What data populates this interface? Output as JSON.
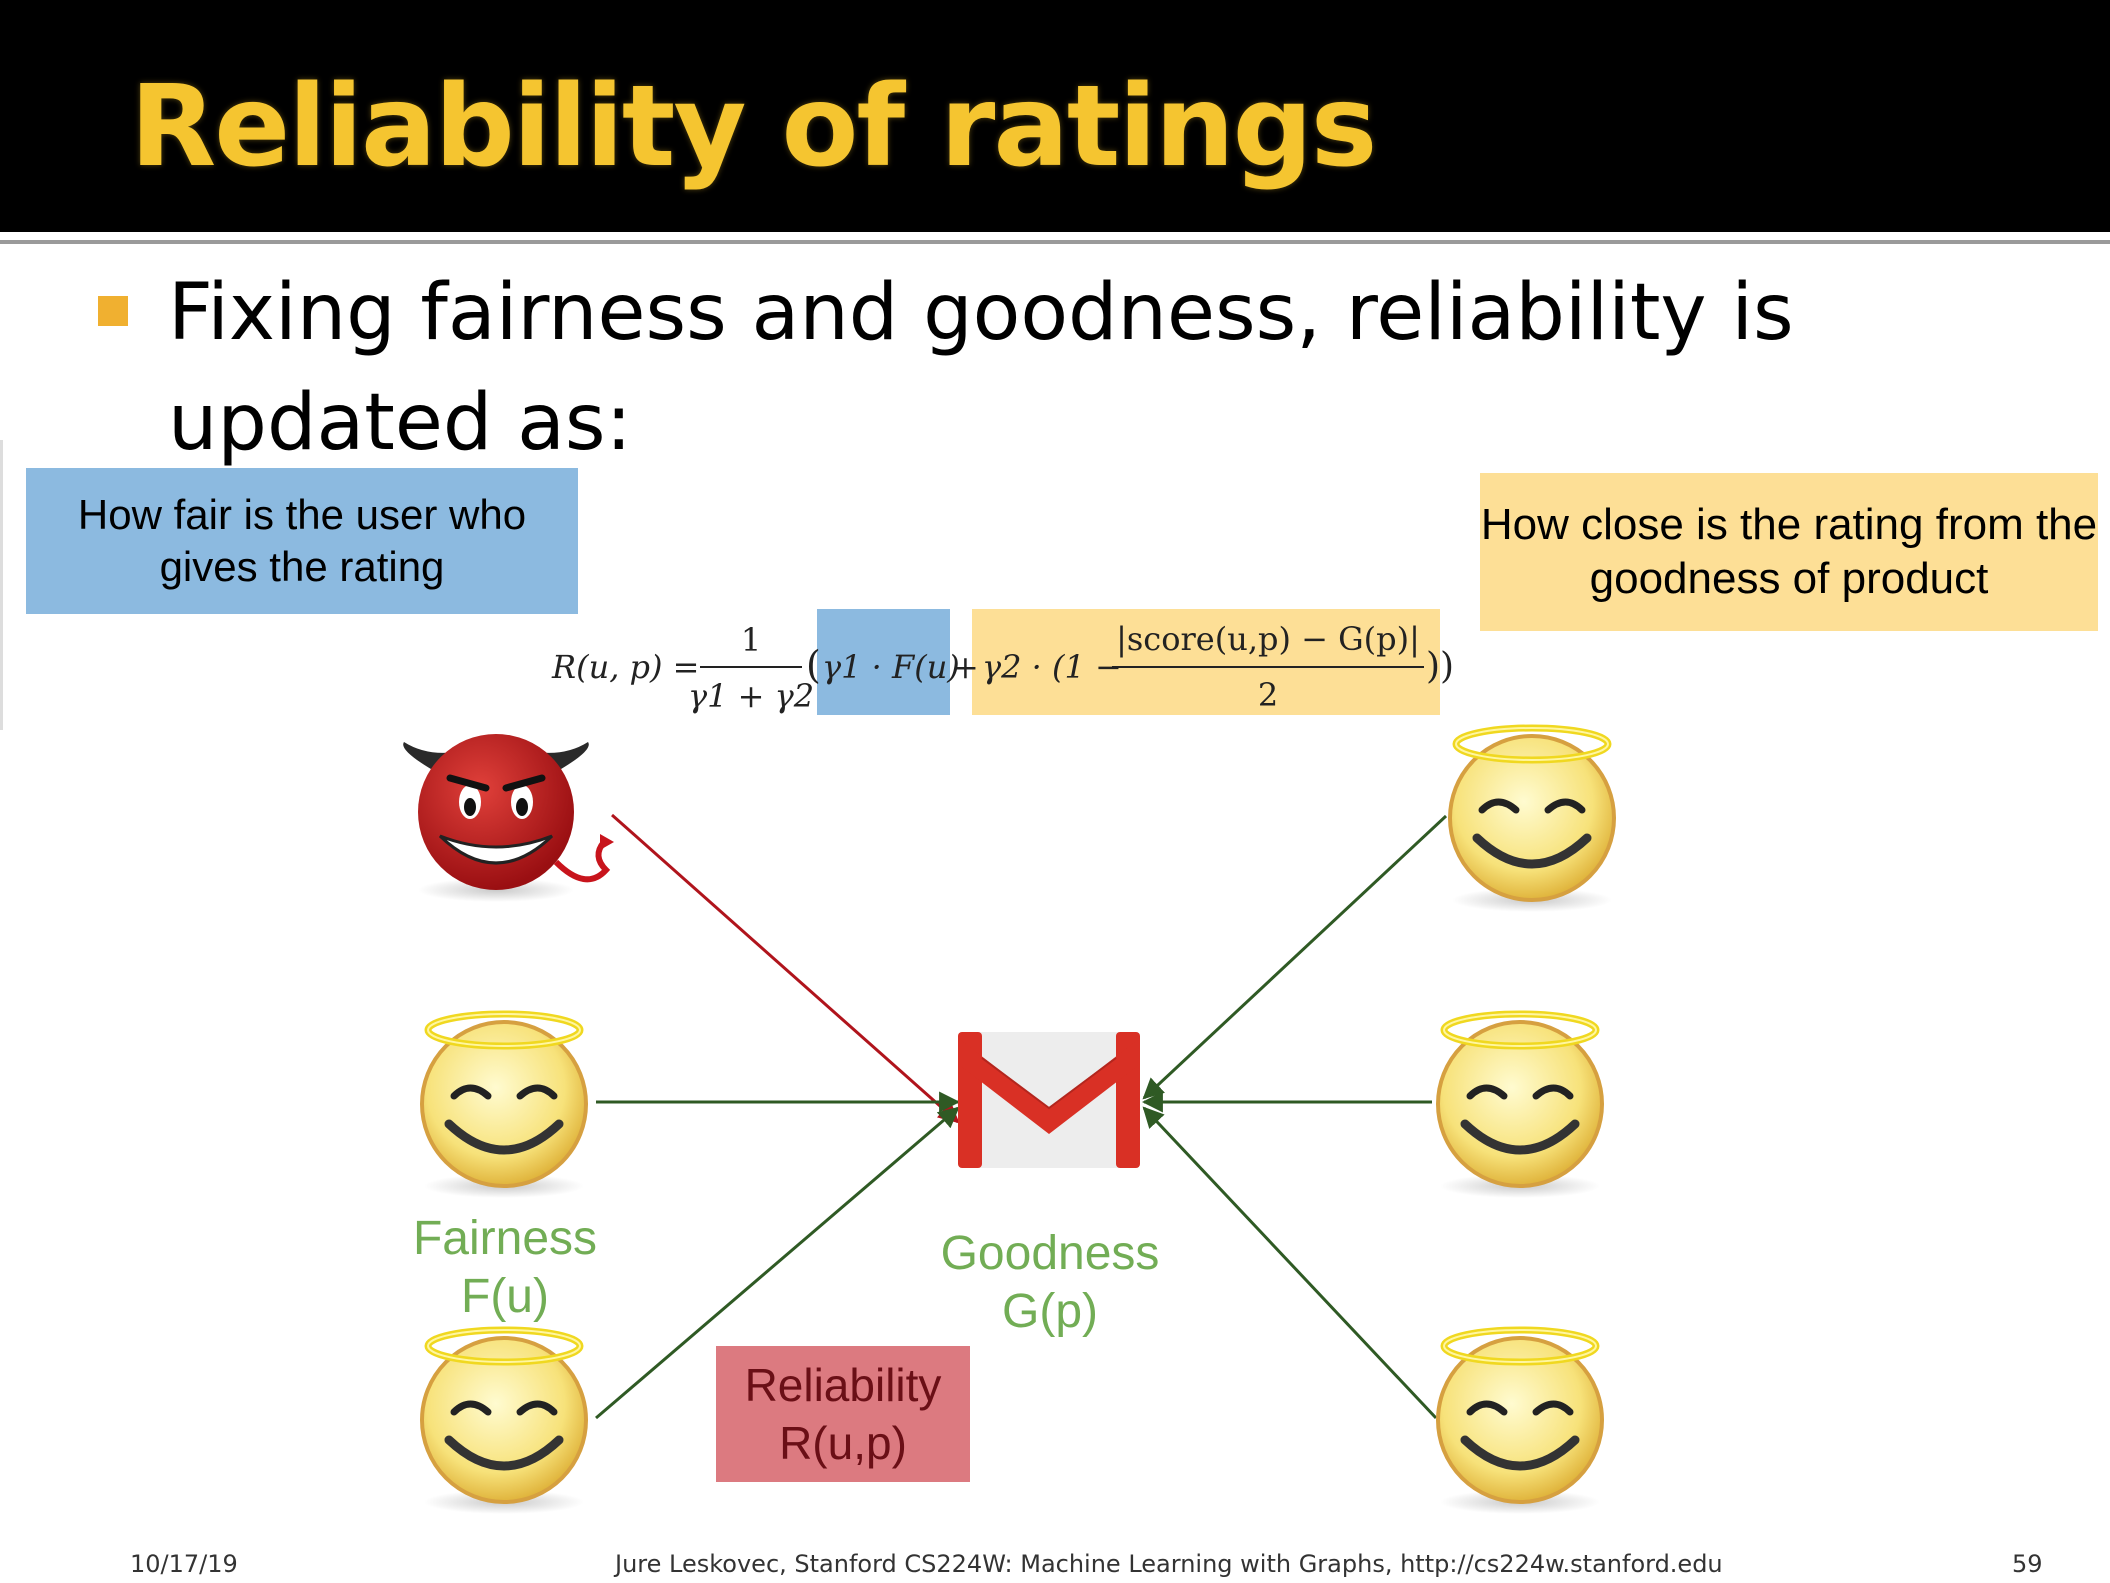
{
  "slide": {
    "title": "Reliability of ratings",
    "bullet": "Fixing fairness and goodness, reliability is updated as:"
  },
  "callouts": {
    "user_fairness": "How fair is the user who gives the rating",
    "rating_closeness": "How close is the rating from the goodness of product"
  },
  "formula": {
    "lhs": "R(u, p) =",
    "frac_num": "1",
    "frac_den": "γ1 + γ2",
    "open_paren": "(",
    "term1": "γ1 · F(u)",
    "plus": "+",
    "term2_prefix": "γ2 · (1 −",
    "term2_num": "|score(u,p) − G(p)|",
    "term2_den": "2",
    "close": "))"
  },
  "diagram": {
    "fairness_label": "Fairness\nF(u)",
    "goodness_label": "Goodness\nG(p)",
    "reliability_label": "Reliability\nR(u,p)",
    "product_icon": "gmail-envelope-icon",
    "users": [
      {
        "type": "devil-icon",
        "side": "left",
        "edge_color": "#b0141c"
      },
      {
        "type": "angel-icon",
        "side": "left",
        "edge_color": "#2f5a24"
      },
      {
        "type": "angel-icon",
        "side": "left",
        "edge_color": "#2f5a24"
      },
      {
        "type": "angel-icon",
        "side": "right",
        "edge_color": "#2f5a24"
      },
      {
        "type": "angel-icon",
        "side": "right",
        "edge_color": "#2f5a24"
      },
      {
        "type": "angel-icon",
        "side": "right",
        "edge_color": "#2f5a24"
      }
    ]
  },
  "footer": {
    "date": "10/17/19",
    "credit": "Jure Leskovec, Stanford CS224W: Machine Learning with Graphs, http://cs224w.stanford.edu",
    "page": "59"
  }
}
